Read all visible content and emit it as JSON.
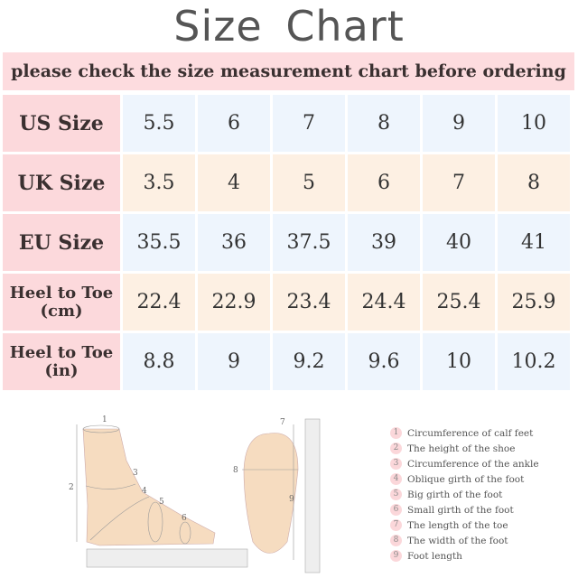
{
  "title": "Size  Chart",
  "banner": "please check the size measurement chart before ordering",
  "rows": [
    {
      "label": "US Size",
      "values": [
        "5.5",
        "6",
        "7",
        "8",
        "9",
        "10"
      ]
    },
    {
      "label": "UK Size",
      "values": [
        "3.5",
        "4",
        "5",
        "6",
        "7",
        "8"
      ]
    },
    {
      "label": "EU Size",
      "values": [
        "35.5",
        "36",
        "37.5",
        "39",
        "40",
        "41"
      ]
    },
    {
      "label": "Heel to Toe (cm)",
      "values": [
        "22.4",
        "22.9",
        "23.4",
        "24.4",
        "25.4",
        "25.9"
      ]
    },
    {
      "label": "Heel to Toe (in)",
      "values": [
        "8.8",
        "9",
        "9.2",
        "9.6",
        "10",
        "10.2"
      ]
    }
  ],
  "legend": [
    {
      "n": "1",
      "text": "Circumference of calf feet"
    },
    {
      "n": "2",
      "text": "The height of the shoe"
    },
    {
      "n": "3",
      "text": "Circumference of the ankle"
    },
    {
      "n": "4",
      "text": "Oblique girth of the foot"
    },
    {
      "n": "5",
      "text": "Big girth of the foot"
    },
    {
      "n": "6",
      "text": "Small girth of the foot"
    },
    {
      "n": "7",
      "text": "The length of the toe"
    },
    {
      "n": "8",
      "text": "The width of the foot"
    },
    {
      "n": "9",
      "text": "Foot length"
    }
  ],
  "colors": {
    "label_bg": "#fcd9dc",
    "blue_bg": "#eef5fd",
    "peach_bg": "#fdf0e3"
  }
}
